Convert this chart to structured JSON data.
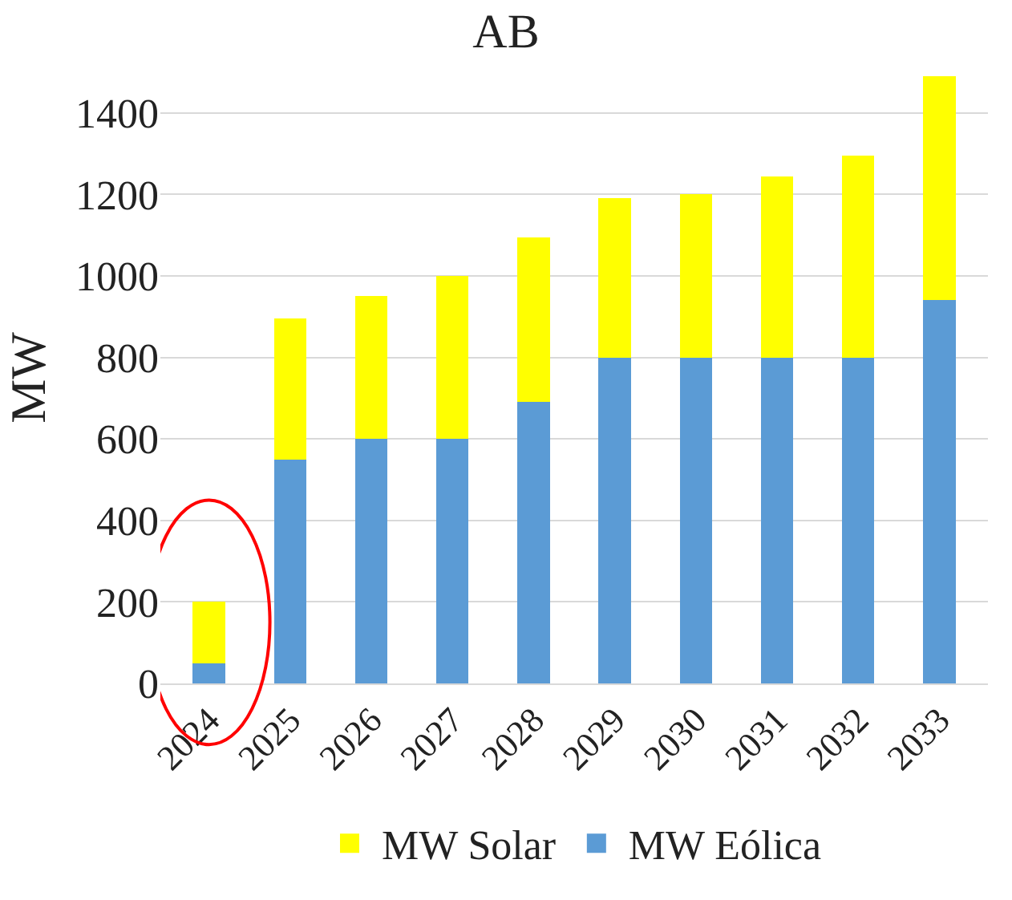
{
  "chart_data": {
    "type": "bar",
    "title": "AB",
    "ylabel": "MW",
    "stacked": true,
    "categories": [
      "2024",
      "2025",
      "2026",
      "2027",
      "2028",
      "2029",
      "2030",
      "2031",
      "2032",
      "2033"
    ],
    "series": [
      {
        "name": "MW Eólica",
        "color": "#5b9bd5",
        "values": [
          50,
          550,
          600,
          600,
          690,
          800,
          800,
          800,
          800,
          940
        ]
      },
      {
        "name": "MW Solar",
        "color": "#ffff00",
        "values": [
          150,
          345,
          350,
          400,
          405,
          390,
          400,
          445,
          495,
          550
        ]
      }
    ],
    "ylim": [
      0,
      1500
    ],
    "yticks": [
      0,
      200,
      400,
      600,
      800,
      1000,
      1200,
      1400
    ],
    "grid": "y",
    "legend": "bottom"
  }
}
